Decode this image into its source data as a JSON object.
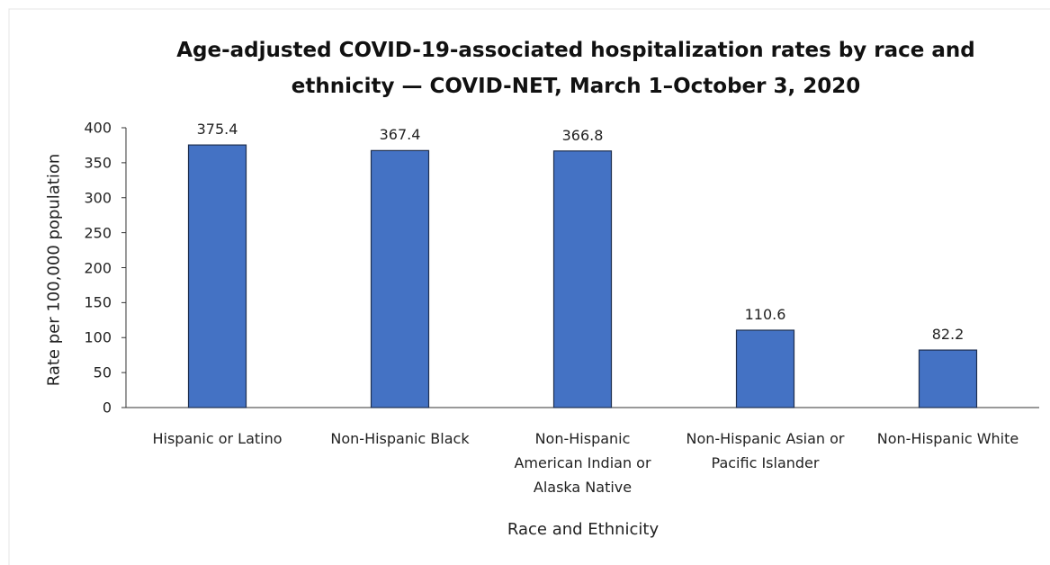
{
  "chart_data": {
    "type": "bar",
    "title": "Age-adjusted COVID-19-associated hospitalization rates by race and ethnicity — COVID-NET, March 1–October 3, 2020",
    "x_label": "Race and Ethnicity",
    "y_label": "Rate per 100,000 population",
    "categories": [
      "Hispanic or Latino",
      "Non-Hispanic Black",
      "Non-Hispanic American Indian or Alaska Native",
      "Non-Hispanic Asian or Pacific Islander",
      "Non-Hispanic White"
    ],
    "values": [
      375.4,
      367.4,
      366.8,
      110.6,
      82.2
    ],
    "color": "#4472c4",
    "ylim": [
      0,
      400
    ],
    "yticks": [
      0,
      50,
      100,
      150,
      200,
      250,
      300,
      350,
      400
    ],
    "grid": false
  }
}
